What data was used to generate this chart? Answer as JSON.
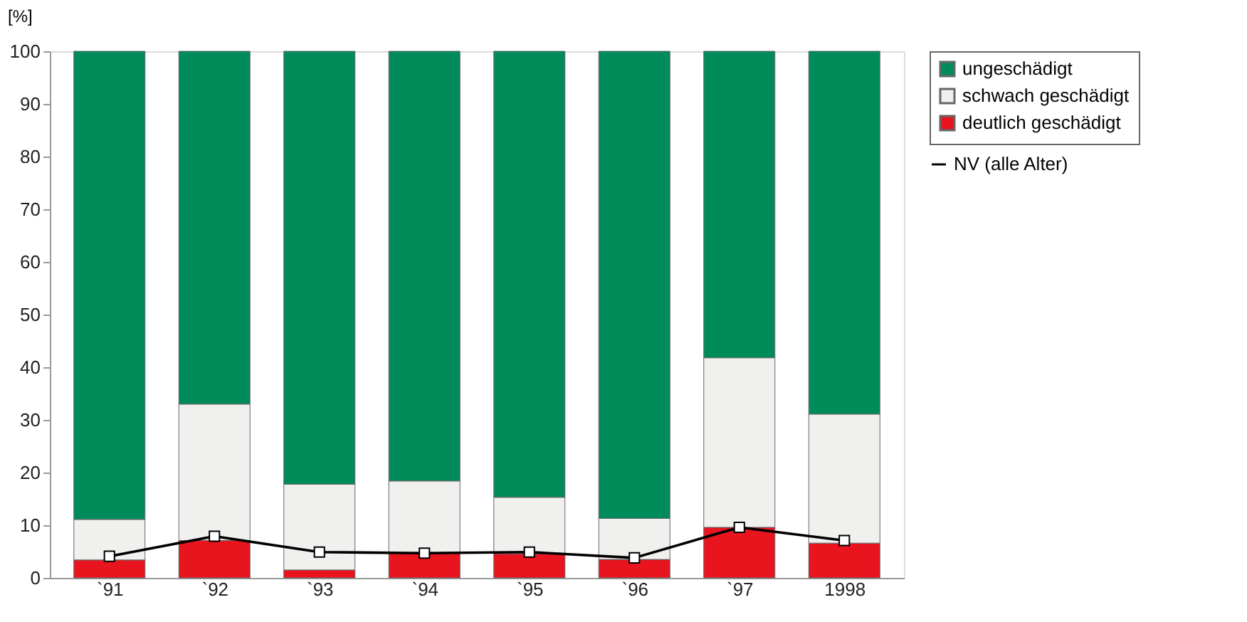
{
  "chart_data": {
    "type": "bar",
    "ylabel": "[%]",
    "stacked": true,
    "categories": [
      "`91",
      "`92",
      "`93",
      "`94",
      "`95",
      "`96",
      "`97",
      "1998"
    ],
    "series": [
      {
        "name": "deutlich geschädigt",
        "color": "#e8141e",
        "values": [
          3.4,
          7.1,
          1.5,
          4.7,
          4.6,
          3.5,
          9.6,
          6.6
        ]
      },
      {
        "name": "schwach geschädigt",
        "color": "#f0f0ee",
        "values": [
          7.7,
          25.9,
          16.3,
          13.7,
          10.7,
          7.8,
          32.2,
          24.5
        ]
      },
      {
        "name": "ungeschädigt",
        "color": "#008c5a",
        "values": [
          88.9,
          67.0,
          82.2,
          81.6,
          84.7,
          88.7,
          58.2,
          68.9
        ]
      },
      {
        "name": "NV (alle Alter)",
        "type": "line",
        "color": "#000000",
        "marker": "square",
        "values": [
          4.1,
          7.9,
          4.9,
          4.7,
          4.9,
          3.8,
          9.6,
          7.1
        ]
      }
    ],
    "ylim": [
      0,
      100
    ],
    "yticks": [
      0,
      10,
      20,
      30,
      40,
      50,
      60,
      70,
      80,
      90,
      100
    ],
    "grid": false,
    "legend": "right"
  }
}
